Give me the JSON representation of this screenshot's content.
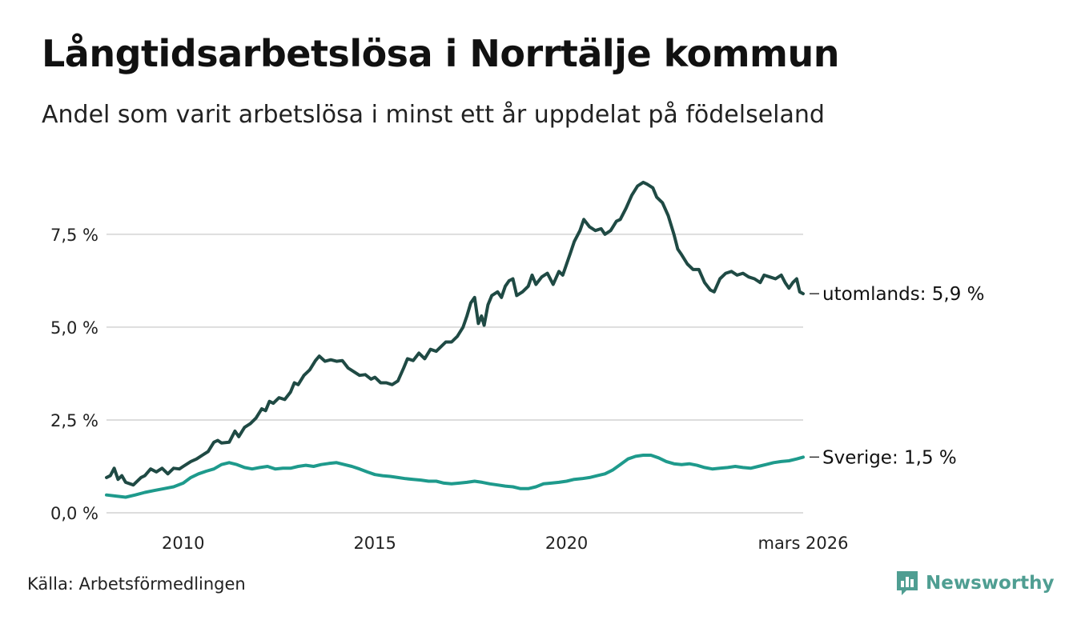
{
  "header": {
    "title": "Långtidsarbetslösa i Norrtälje kommun",
    "subtitle": "Andel som varit arbetslösa i minst ett år uppdelat på födelseland"
  },
  "footer": {
    "source": "Källa: Arbetsförmedlingen",
    "brand": "Newsworthy"
  },
  "colors": {
    "utomlands": "#1f4a44",
    "sverige": "#1e9a8c",
    "grid": "#dddddd",
    "brand": "#4f9e92"
  },
  "chart_data": {
    "type": "line",
    "title": "Långtidsarbetslösa i Norrtälje kommun",
    "xlabel": "",
    "ylabel": "",
    "ylim": [
      0,
      9.5
    ],
    "xlim": [
      2008.0,
      2026.17
    ],
    "y_ticks": [
      {
        "value": 0,
        "label": "0,0 %"
      },
      {
        "value": 2.5,
        "label": "2,5 %"
      },
      {
        "value": 5,
        "label": "5,0 %"
      },
      {
        "value": 7.5,
        "label": "7,5 %"
      }
    ],
    "x_ticks": [
      {
        "value": 2010,
        "label": "2010"
      },
      {
        "value": 2015,
        "label": "2015"
      },
      {
        "value": 2020,
        "label": "2020"
      },
      {
        "value": 2026.17,
        "label": "mars 2026"
      }
    ],
    "series": [
      {
        "name": "utomlands",
        "end_label": "utomlands: 5,9 %",
        "color": "#1f4a44",
        "points": [
          [
            2008.0,
            0.95
          ],
          [
            2008.1,
            1.0
          ],
          [
            2008.2,
            1.2
          ],
          [
            2008.3,
            0.9
          ],
          [
            2008.4,
            1.0
          ],
          [
            2008.5,
            0.82
          ],
          [
            2008.7,
            0.75
          ],
          [
            2008.9,
            0.95
          ],
          [
            2009.0,
            1.0
          ],
          [
            2009.15,
            1.18
          ],
          [
            2009.3,
            1.1
          ],
          [
            2009.45,
            1.2
          ],
          [
            2009.6,
            1.05
          ],
          [
            2009.75,
            1.2
          ],
          [
            2009.9,
            1.18
          ],
          [
            2010.0,
            1.25
          ],
          [
            2010.2,
            1.38
          ],
          [
            2010.35,
            1.45
          ],
          [
            2010.5,
            1.55
          ],
          [
            2010.65,
            1.65
          ],
          [
            2010.8,
            1.9
          ],
          [
            2010.9,
            1.95
          ],
          [
            2011.0,
            1.88
          ],
          [
            2011.2,
            1.9
          ],
          [
            2011.35,
            2.2
          ],
          [
            2011.45,
            2.05
          ],
          [
            2011.6,
            2.3
          ],
          [
            2011.75,
            2.4
          ],
          [
            2011.9,
            2.55
          ],
          [
            2012.05,
            2.8
          ],
          [
            2012.15,
            2.75
          ],
          [
            2012.25,
            3.0
          ],
          [
            2012.35,
            2.95
          ],
          [
            2012.5,
            3.1
          ],
          [
            2012.65,
            3.05
          ],
          [
            2012.8,
            3.25
          ],
          [
            2012.9,
            3.5
          ],
          [
            2013.0,
            3.45
          ],
          [
            2013.15,
            3.7
          ],
          [
            2013.3,
            3.85
          ],
          [
            2013.45,
            4.1
          ],
          [
            2013.55,
            4.22
          ],
          [
            2013.7,
            4.08
          ],
          [
            2013.85,
            4.12
          ],
          [
            2014.0,
            4.08
          ],
          [
            2014.15,
            4.1
          ],
          [
            2014.3,
            3.9
          ],
          [
            2014.45,
            3.8
          ],
          [
            2014.6,
            3.7
          ],
          [
            2014.75,
            3.72
          ],
          [
            2014.9,
            3.6
          ],
          [
            2015.0,
            3.65
          ],
          [
            2015.15,
            3.5
          ],
          [
            2015.3,
            3.5
          ],
          [
            2015.45,
            3.45
          ],
          [
            2015.6,
            3.55
          ],
          [
            2015.75,
            3.9
          ],
          [
            2015.85,
            4.15
          ],
          [
            2016.0,
            4.1
          ],
          [
            2016.15,
            4.3
          ],
          [
            2016.3,
            4.15
          ],
          [
            2016.45,
            4.4
          ],
          [
            2016.6,
            4.35
          ],
          [
            2016.75,
            4.5
          ],
          [
            2016.85,
            4.6
          ],
          [
            2017.0,
            4.6
          ],
          [
            2017.15,
            4.75
          ],
          [
            2017.3,
            5.0
          ],
          [
            2017.4,
            5.3
          ],
          [
            2017.5,
            5.65
          ],
          [
            2017.6,
            5.8
          ],
          [
            2017.7,
            5.1
          ],
          [
            2017.78,
            5.3
          ],
          [
            2017.85,
            5.05
          ],
          [
            2017.95,
            5.6
          ],
          [
            2018.05,
            5.85
          ],
          [
            2018.2,
            5.95
          ],
          [
            2018.3,
            5.8
          ],
          [
            2018.4,
            6.1
          ],
          [
            2018.5,
            6.25
          ],
          [
            2018.6,
            6.3
          ],
          [
            2018.7,
            5.85
          ],
          [
            2018.85,
            5.95
          ],
          [
            2019.0,
            6.1
          ],
          [
            2019.1,
            6.4
          ],
          [
            2019.2,
            6.15
          ],
          [
            2019.35,
            6.35
          ],
          [
            2019.5,
            6.45
          ],
          [
            2019.65,
            6.15
          ],
          [
            2019.8,
            6.5
          ],
          [
            2019.9,
            6.4
          ],
          [
            2020.0,
            6.7
          ],
          [
            2020.1,
            7.0
          ],
          [
            2020.2,
            7.3
          ],
          [
            2020.35,
            7.6
          ],
          [
            2020.45,
            7.9
          ],
          [
            2020.6,
            7.7
          ],
          [
            2020.75,
            7.6
          ],
          [
            2020.9,
            7.65
          ],
          [
            2021.0,
            7.5
          ],
          [
            2021.15,
            7.6
          ],
          [
            2021.3,
            7.85
          ],
          [
            2021.4,
            7.9
          ],
          [
            2021.55,
            8.2
          ],
          [
            2021.7,
            8.55
          ],
          [
            2021.85,
            8.8
          ],
          [
            2022.0,
            8.9
          ],
          [
            2022.1,
            8.85
          ],
          [
            2022.25,
            8.75
          ],
          [
            2022.35,
            8.5
          ],
          [
            2022.5,
            8.35
          ],
          [
            2022.65,
            8.0
          ],
          [
            2022.8,
            7.5
          ],
          [
            2022.9,
            7.1
          ],
          [
            2023.0,
            6.95
          ],
          [
            2023.15,
            6.7
          ],
          [
            2023.3,
            6.55
          ],
          [
            2023.45,
            6.55
          ],
          [
            2023.6,
            6.2
          ],
          [
            2023.75,
            6.0
          ],
          [
            2023.85,
            5.95
          ],
          [
            2024.0,
            6.3
          ],
          [
            2024.15,
            6.45
          ],
          [
            2024.3,
            6.5
          ],
          [
            2024.45,
            6.4
          ],
          [
            2024.6,
            6.45
          ],
          [
            2024.75,
            6.35
          ],
          [
            2024.9,
            6.3
          ],
          [
            2025.05,
            6.2
          ],
          [
            2025.15,
            6.4
          ],
          [
            2025.3,
            6.35
          ],
          [
            2025.45,
            6.3
          ],
          [
            2025.6,
            6.4
          ],
          [
            2025.7,
            6.2
          ],
          [
            2025.8,
            6.05
          ],
          [
            2025.9,
            6.2
          ],
          [
            2026.0,
            6.3
          ],
          [
            2026.08,
            5.95
          ],
          [
            2026.17,
            5.9
          ]
        ]
      },
      {
        "name": "Sverige",
        "end_label": "Sverige: 1,5 %",
        "color": "#1e9a8c",
        "points": [
          [
            2008.0,
            0.48
          ],
          [
            2008.25,
            0.45
          ],
          [
            2008.5,
            0.42
          ],
          [
            2008.75,
            0.48
          ],
          [
            2009.0,
            0.55
          ],
          [
            2009.25,
            0.6
          ],
          [
            2009.5,
            0.65
          ],
          [
            2009.75,
            0.7
          ],
          [
            2010.0,
            0.8
          ],
          [
            2010.2,
            0.95
          ],
          [
            2010.4,
            1.05
          ],
          [
            2010.6,
            1.12
          ],
          [
            2010.8,
            1.18
          ],
          [
            2011.0,
            1.3
          ],
          [
            2011.2,
            1.35
          ],
          [
            2011.4,
            1.3
          ],
          [
            2011.6,
            1.22
          ],
          [
            2011.8,
            1.18
          ],
          [
            2012.0,
            1.22
          ],
          [
            2012.2,
            1.25
          ],
          [
            2012.4,
            1.18
          ],
          [
            2012.6,
            1.2
          ],
          [
            2012.8,
            1.2
          ],
          [
            2013.0,
            1.25
          ],
          [
            2013.2,
            1.28
          ],
          [
            2013.4,
            1.25
          ],
          [
            2013.6,
            1.3
          ],
          [
            2013.8,
            1.33
          ],
          [
            2014.0,
            1.35
          ],
          [
            2014.2,
            1.3
          ],
          [
            2014.4,
            1.25
          ],
          [
            2014.6,
            1.18
          ],
          [
            2014.8,
            1.1
          ],
          [
            2015.0,
            1.03
          ],
          [
            2015.2,
            1.0
          ],
          [
            2015.4,
            0.98
          ],
          [
            2015.6,
            0.95
          ],
          [
            2015.8,
            0.92
          ],
          [
            2016.0,
            0.9
          ],
          [
            2016.2,
            0.88
          ],
          [
            2016.4,
            0.85
          ],
          [
            2016.6,
            0.85
          ],
          [
            2016.8,
            0.8
          ],
          [
            2017.0,
            0.78
          ],
          [
            2017.2,
            0.8
          ],
          [
            2017.4,
            0.82
          ],
          [
            2017.6,
            0.85
          ],
          [
            2017.8,
            0.82
          ],
          [
            2018.0,
            0.78
          ],
          [
            2018.2,
            0.75
          ],
          [
            2018.4,
            0.72
          ],
          [
            2018.6,
            0.7
          ],
          [
            2018.8,
            0.65
          ],
          [
            2019.0,
            0.65
          ],
          [
            2019.2,
            0.7
          ],
          [
            2019.4,
            0.78
          ],
          [
            2019.6,
            0.8
          ],
          [
            2019.8,
            0.82
          ],
          [
            2020.0,
            0.85
          ],
          [
            2020.2,
            0.9
          ],
          [
            2020.4,
            0.92
          ],
          [
            2020.6,
            0.95
          ],
          [
            2020.8,
            1.0
          ],
          [
            2021.0,
            1.05
          ],
          [
            2021.2,
            1.15
          ],
          [
            2021.4,
            1.3
          ],
          [
            2021.6,
            1.45
          ],
          [
            2021.8,
            1.52
          ],
          [
            2022.0,
            1.55
          ],
          [
            2022.2,
            1.55
          ],
          [
            2022.4,
            1.48
          ],
          [
            2022.6,
            1.38
          ],
          [
            2022.8,
            1.32
          ],
          [
            2023.0,
            1.3
          ],
          [
            2023.2,
            1.32
          ],
          [
            2023.4,
            1.28
          ],
          [
            2023.6,
            1.22
          ],
          [
            2023.8,
            1.18
          ],
          [
            2024.0,
            1.2
          ],
          [
            2024.2,
            1.22
          ],
          [
            2024.4,
            1.25
          ],
          [
            2024.6,
            1.22
          ],
          [
            2024.8,
            1.2
          ],
          [
            2025.0,
            1.25
          ],
          [
            2025.2,
            1.3
          ],
          [
            2025.4,
            1.35
          ],
          [
            2025.6,
            1.38
          ],
          [
            2025.8,
            1.4
          ],
          [
            2026.0,
            1.45
          ],
          [
            2026.17,
            1.5
          ]
        ]
      }
    ]
  }
}
